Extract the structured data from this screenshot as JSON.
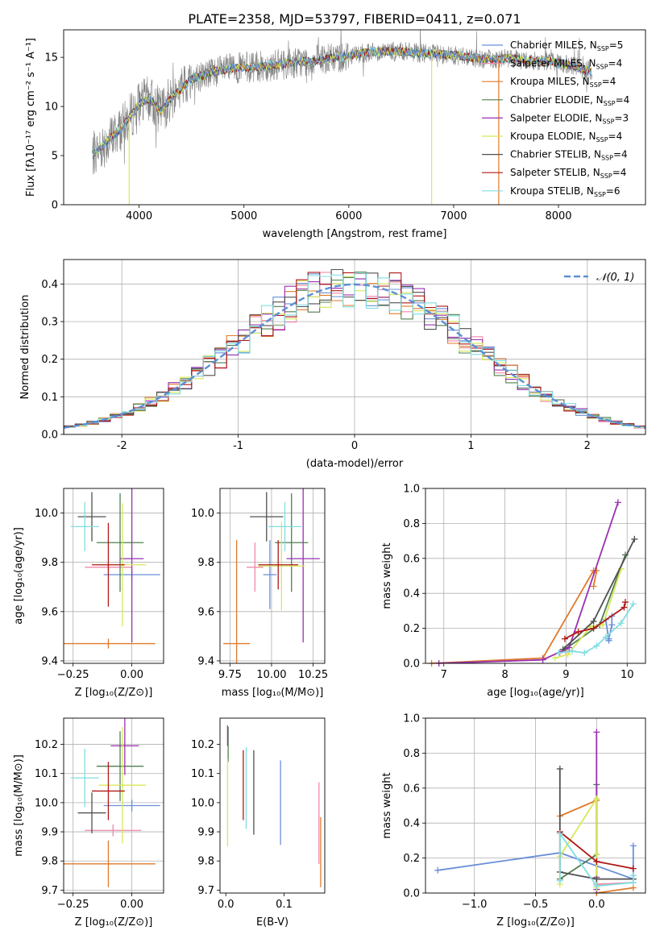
{
  "figure_title": "PLATE=2358, MJD=53797, FIBERID=0411, z=0.071",
  "colors": {
    "Chabrier MILES": "#6a8fd8",
    "Salpeter MILES": "#f08aa8",
    "Kroupa MILES": "#e07a2a",
    "Chabrier ELODIE": "#4f7f4f",
    "Salpeter ELODIE": "#9a30b0",
    "Kroupa ELODIE": "#d8e85a",
    "Chabrier STELIB": "#505050",
    "Salpeter STELIB": "#b01818",
    "Kroupa STELIB": "#80dde0",
    "normal_curve": "#5b8fd6"
  },
  "chart_data": [
    {
      "id": "spectrum",
      "type": "line",
      "xlabel": "wavelength [Angstrom, rest frame]",
      "ylabel": "Flux [fλ10⁻¹⁷ erg cm⁻² s⁻¹ A⁻¹]",
      "xlim": [
        3280,
        8830
      ],
      "ylim": [
        0,
        17.8
      ],
      "xticks": [
        4000,
        5000,
        6000,
        7000,
        8000
      ],
      "yticks": [
        0,
        5,
        10,
        15
      ],
      "grid": false,
      "legend_position": "right",
      "data_color": "#808080",
      "continuum": {
        "x": [
          3550,
          3700,
          3850,
          4000,
          4100,
          4200,
          4300,
          4400,
          4500,
          4700,
          4900,
          5100,
          5300,
          5500,
          5700,
          5900,
          6100,
          6300,
          6500,
          6700,
          6900,
          7100,
          7300,
          7500,
          7700,
          7900,
          8100,
          8300
        ],
        "y": [
          5.0,
          6.5,
          8.0,
          10.3,
          10.8,
          9.5,
          10.8,
          11.8,
          12.8,
          13.5,
          13.9,
          14.0,
          14.2,
          14.5,
          14.7,
          15.0,
          15.4,
          15.6,
          15.6,
          15.4,
          15.3,
          15.1,
          14.8,
          14.9,
          14.7,
          14.6,
          14.2,
          13.6
        ]
      },
      "series": [
        {
          "name": "Chabrier MILES, N$_{SSP}$=5",
          "label": "Chabrier MILES, N",
          "n": "=5"
        },
        {
          "name": "Salpeter MILES, N$_{SSP}$=4",
          "label": "Salpeter MILES, N",
          "n": "=4"
        },
        {
          "name": "Kroupa MILES, N$_{SSP}$=4",
          "label": "Kroupa MILES, N",
          "n": "=4"
        },
        {
          "name": "Chabrier ELODIE, N$_{SSP}$=4",
          "label": "Chabrier ELODIE, N",
          "n": "=4"
        },
        {
          "name": "Salpeter ELODIE, N$_{SSP}$=3",
          "label": "Salpeter ELODIE, N",
          "n": "=3"
        },
        {
          "name": "Kroupa ELODIE, N$_{SSP}$=4",
          "label": "Kroupa ELODIE, N",
          "n": "=4"
        },
        {
          "name": "Chabrier STELIB, N$_{SSP}$=4",
          "label": "Chabrier STELIB, N",
          "n": "=4"
        },
        {
          "name": "Salpeter STELIB, N$_{SSP}$=4",
          "label": "Salpeter STELIB, N",
          "n": "=4"
        },
        {
          "name": "Kroupa STELIB, N$_{SSP}$=6",
          "label": "Kroupa STELIB, N",
          "n": "=6"
        }
      ],
      "legend_subscript": "SSP",
      "spikes": [
        {
          "x": 3905,
          "color": "#d8e85a"
        },
        {
          "x": 6790,
          "color": "#d8e85a"
        },
        {
          "x": 7430,
          "color": "#e07a2a"
        }
      ]
    },
    {
      "id": "residuals",
      "type": "histogram",
      "xlabel": "(data-model)/error",
      "ylabel": "Normed distribution",
      "xlim": [
        -2.5,
        2.5
      ],
      "ylim": [
        0,
        0.465
      ],
      "xticks": [
        -2,
        -1,
        0,
        1,
        2
      ],
      "yticks": [
        0.0,
        0.1,
        0.2,
        0.3,
        0.4
      ],
      "grid": true,
      "bin_width": 0.1,
      "bin_start": -2.5,
      "legend": "𝒩(0, 1)",
      "legend_position": "top-right"
    },
    {
      "id": "age-vs-Z",
      "type": "errorbar",
      "xlabel": "Z [log₁₀(Z/Z⊙)]",
      "ylabel": "age  [log₁₀(age/yr)]",
      "xlim": [
        -0.29,
        0.135
      ],
      "ylim": [
        9.39,
        10.1
      ],
      "xticks": [
        -0.25,
        0.0
      ],
      "xtick_labels": [
        "−0.25",
        "0.00"
      ],
      "yticks": [
        9.4,
        9.6,
        9.8,
        10.0
      ],
      "grid": true,
      "points": [
        {
          "model": "Chabrier MILES",
          "x": 0.0,
          "xerr": 0.12,
          "y": 9.75,
          "yerr": 0.02
        },
        {
          "model": "Salpeter MILES",
          "x": -0.1,
          "xerr": 0.1,
          "y": 9.78,
          "yerr": 0.02
        },
        {
          "model": "Kroupa MILES",
          "x": -0.1,
          "xerr": 0.2,
          "y": 9.47,
          "yerr": 0.02
        },
        {
          "model": "Chabrier ELODIE",
          "x": -0.05,
          "xerr": 0.1,
          "y": 9.88,
          "yerr": 0.2
        },
        {
          "model": "Salpeter ELODIE",
          "x": 0.0,
          "xerr": 0.05,
          "y": 9.815,
          "yerr": 0.34
        },
        {
          "model": "Kroupa ELODIE",
          "x": -0.04,
          "xerr": 0.1,
          "y": 9.79,
          "yerr": 0.25
        },
        {
          "model": "Chabrier STELIB",
          "x": -0.17,
          "xerr": 0.06,
          "y": 9.985,
          "yerr": 0.1
        },
        {
          "model": "Salpeter STELIB",
          "x": -0.1,
          "xerr": 0.07,
          "y": 9.79,
          "yerr": 0.17
        },
        {
          "model": "Kroupa STELIB",
          "x": -0.2,
          "xerr": 0.06,
          "y": 9.945,
          "yerr": 0.1
        }
      ]
    },
    {
      "id": "age-vs-mass",
      "type": "errorbar",
      "xlabel": "mass [log₁₀(M/M⊙)]",
      "ylabel": "",
      "xlim": [
        9.69,
        10.32
      ],
      "ylim": [
        9.39,
        10.1
      ],
      "xticks": [
        9.75,
        10.0,
        10.25
      ],
      "xtick_labels": [
        "9.75",
        "10.00",
        "10.25"
      ],
      "yticks": [
        9.4,
        9.6,
        9.8,
        10.0
      ],
      "grid": true,
      "points": [
        {
          "model": "Chabrier MILES",
          "x": 9.99,
          "xerr": 0.04,
          "y": 9.75,
          "yerr": 0.14
        },
        {
          "model": "Salpeter MILES",
          "x": 9.9,
          "xerr": 0.05,
          "y": 9.78,
          "yerr": 0.1
        },
        {
          "model": "Kroupa MILES",
          "x": 9.79,
          "xerr": 0.08,
          "y": 9.47,
          "yerr": 0.42
        },
        {
          "model": "Chabrier ELODIE",
          "x": 10.12,
          "xerr": 0.1,
          "y": 9.88,
          "yerr": 0.2
        },
        {
          "model": "Salpeter ELODIE",
          "x": 10.19,
          "xerr": 0.1,
          "y": 9.815,
          "yerr": 0.34
        },
        {
          "model": "Kroupa ELODIE",
          "x": 10.06,
          "xerr": 0.14,
          "y": 9.785,
          "yerr": 0.18
        },
        {
          "model": "Chabrier STELIB",
          "x": 9.97,
          "xerr": 0.1,
          "y": 9.985,
          "yerr": 0.1
        },
        {
          "model": "Salpeter STELIB",
          "x": 10.04,
          "xerr": 0.12,
          "y": 9.79,
          "yerr": 0.1
        },
        {
          "model": "Kroupa STELIB",
          "x": 10.08,
          "xerr": 0.1,
          "y": 9.945,
          "yerr": 0.1
        }
      ]
    },
    {
      "id": "weight-vs-age",
      "type": "line",
      "xlabel": "age  [log₁₀(age/yr)]",
      "ylabel": "mass weight",
      "xlim": [
        6.7,
        10.3
      ],
      "ylim": [
        0,
        1.0
      ],
      "xticks": [
        7,
        8,
        9,
        10
      ],
      "yticks": [
        0.0,
        0.2,
        0.4,
        0.6,
        0.8,
        1.0
      ],
      "grid": true,
      "series": [
        {
          "model": "Chabrier MILES",
          "x": [
            9.65,
            9.7,
            9.7,
            9.75,
            9.75
          ],
          "y": [
            0.25,
            0.13,
            0.14,
            0.22,
            0.27
          ]
        },
        {
          "model": "Salpeter MILES",
          "x": [
            8.9,
            9.0
          ],
          "y": [
            0.06,
            0.07
          ]
        },
        {
          "model": "Kroupa MILES",
          "x": [
            6.8,
            8.62,
            9.45,
            9.5,
            9.45
          ],
          "y": [
            0.0,
            0.03,
            0.53,
            0.53,
            0.44
          ]
        },
        {
          "model": "Chabrier ELODIE",
          "x": [
            8.98,
            9.55,
            9.97
          ],
          "y": [
            0.08,
            0.22,
            0.62
          ]
        },
        {
          "model": "Salpeter ELODIE",
          "x": [
            6.92,
            8.62,
            9.05,
            9.85
          ],
          "y": [
            0.0,
            0.02,
            0.09,
            0.92
          ]
        },
        {
          "model": "Kroupa ELODIE",
          "x": [
            8.82,
            9.03,
            9.4,
            9.6,
            9.9
          ],
          "y": [
            0.03,
            0.05,
            0.21,
            0.22,
            0.54
          ]
        },
        {
          "model": "Chabrier STELIB",
          "x": [
            8.95,
            9.45,
            10.12
          ],
          "y": [
            0.08,
            0.24,
            0.71
          ]
        },
        {
          "model": "Salpeter STELIB",
          "x": [
            8.98,
            9.2,
            9.45,
            9.95,
            9.97
          ],
          "y": [
            0.14,
            0.18,
            0.2,
            0.32,
            0.35
          ]
        },
        {
          "model": "Kroupa STELIB",
          "x": [
            8.88,
            9.1,
            9.3,
            9.5,
            9.65,
            9.9,
            10.1
          ],
          "y": [
            0.06,
            0.07,
            0.06,
            0.1,
            0.15,
            0.23,
            0.34
          ]
        }
      ]
    },
    {
      "id": "mass-vs-Z",
      "type": "errorbar",
      "xlabel": "Z [log₁₀(Z/Z⊙)]",
      "ylabel": "mass [log₁₀(M/M⊙)]",
      "xlim": [
        -0.29,
        0.135
      ],
      "ylim": [
        9.69,
        10.29
      ],
      "xticks": [
        -0.25,
        0.0
      ],
      "xtick_labels": [
        "−0.25",
        "0.00"
      ],
      "yticks": [
        9.7,
        9.8,
        9.9,
        10.0,
        10.1,
        10.2
      ],
      "grid": true,
      "points": [
        {
          "model": "Chabrier MILES",
          "x": 0.0,
          "xerr": 0.12,
          "y": 9.99,
          "yerr": 0.02
        },
        {
          "model": "Salpeter MILES",
          "x": -0.08,
          "xerr": 0.12,
          "y": 9.905,
          "yerr": 0.02
        },
        {
          "model": "Kroupa MILES",
          "x": -0.1,
          "xerr": 0.2,
          "y": 9.79,
          "yerr": 0.08
        },
        {
          "model": "Chabrier ELODIE",
          "x": -0.05,
          "xerr": 0.1,
          "y": 10.125,
          "yerr": 0.12
        },
        {
          "model": "Salpeter ELODIE",
          "x": -0.03,
          "xerr": 0.06,
          "y": 10.195,
          "yerr": 0.1
        },
        {
          "model": "Kroupa ELODIE",
          "x": -0.04,
          "xerr": 0.1,
          "y": 10.06,
          "yerr": 0.2
        },
        {
          "model": "Chabrier STELIB",
          "x": -0.17,
          "xerr": 0.06,
          "y": 9.965,
          "yerr": 0.07
        },
        {
          "model": "Salpeter STELIB",
          "x": -0.1,
          "xerr": 0.07,
          "y": 10.04,
          "yerr": 0.1
        },
        {
          "model": "Kroupa STELIB",
          "x": -0.2,
          "xerr": 0.06,
          "y": 10.085,
          "yerr": 0.1
        }
      ]
    },
    {
      "id": "mass-vs-ebv",
      "type": "errorbar",
      "xlabel": "E(B-V)",
      "ylabel": "",
      "xlim": [
        -0.01,
        0.17
      ],
      "ylim": [
        9.69,
        10.29
      ],
      "xticks": [
        0.0,
        0.1
      ],
      "xtick_labels": [
        "0.0",
        "0.1"
      ],
      "yticks": [
        9.7,
        9.8,
        9.9,
        10.0,
        10.1,
        10.2
      ],
      "grid": false,
      "points": [
        {
          "model": "Chabrier MILES",
          "x": 0.094,
          "xerr": 0,
          "y": 10.0,
          "yerr": 0.145
        },
        {
          "model": "Salpeter MILES",
          "x": 0.16,
          "xerr": 0,
          "y": 9.93,
          "yerr": 0.14
        },
        {
          "model": "Kroupa MILES",
          "x": 0.163,
          "xerr": 0,
          "y": 9.83,
          "yerr": 0.12
        },
        {
          "model": "Chabrier ELODIE",
          "x": 0.004,
          "xerr": 0,
          "y": 10.2,
          "yerr": 0.06
        },
        {
          "model": "Salpeter ELODIE",
          "x": 0.003,
          "xerr": 0,
          "y": 10.23,
          "yerr": 0.035
        },
        {
          "model": "Kroupa ELODIE",
          "x": 0.003,
          "xerr": 0,
          "y": 10.0,
          "yerr": 0.15
        },
        {
          "model": "Chabrier STELIB",
          "x": 0.048,
          "xerr": 0,
          "y": 10.035,
          "yerr": 0.145
        },
        {
          "model": "Salpeter STELIB",
          "x": 0.03,
          "xerr": 0,
          "y": 10.06,
          "yerr": 0.12
        },
        {
          "model": "Kroupa STELIB",
          "x": 0.035,
          "xerr": 0,
          "y": 10.05,
          "yerr": 0.14
        }
      ]
    },
    {
      "id": "weight-vs-Z",
      "type": "line",
      "xlabel": "Z [log₁₀(Z/Z⊙)]",
      "ylabel": "mass weight",
      "xlim": [
        -1.4,
        0.4
      ],
      "ylim": [
        0,
        1.0
      ],
      "xticks": [
        -1.0,
        -0.5,
        0.0
      ],
      "xtick_labels": [
        "−1.0",
        "−0.5",
        "0.0"
      ],
      "yticks": [
        0.0,
        0.2,
        0.4,
        0.6,
        0.8,
        1.0
      ],
      "grid": true,
      "series": [
        {
          "model": "Chabrier MILES",
          "x": [
            -1.3,
            -0.3,
            0.3,
            0.3
          ],
          "y": [
            0.13,
            0.23,
            0.08,
            0.27
          ]
        },
        {
          "model": "Salpeter MILES",
          "x": [
            0.0,
            0.3
          ],
          "y": [
            0.05,
            0.06
          ]
        },
        {
          "model": "Kroupa MILES",
          "x": [
            -0.3,
            0.0,
            0.0,
            0.3
          ],
          "y": [
            0.44,
            0.53,
            0.0,
            0.03
          ]
        },
        {
          "model": "Chabrier ELODIE",
          "x": [
            -0.3,
            0.0,
            0.0
          ],
          "y": [
            0.08,
            0.22,
            0.62
          ]
        },
        {
          "model": "Salpeter ELODIE",
          "x": [
            0.0,
            0.0,
            0.0
          ],
          "y": [
            0.09,
            0.92,
            0.02
          ]
        },
        {
          "model": "Kroupa ELODIE",
          "x": [
            -0.3,
            -0.3,
            0.0,
            0.0,
            0.0
          ],
          "y": [
            0.05,
            0.21,
            0.54,
            0.22,
            0.03
          ]
        },
        {
          "model": "Chabrier STELIB",
          "x": [
            -0.3,
            -0.3,
            0.0,
            0.3
          ],
          "y": [
            0.71,
            0.12,
            0.08,
            0.08
          ]
        },
        {
          "model": "Salpeter STELIB",
          "x": [
            -0.3,
            0.0,
            0.3
          ],
          "y": [
            0.35,
            0.18,
            0.14
          ]
        },
        {
          "model": "Kroupa STELIB",
          "x": [
            -0.3,
            -0.3,
            0.0,
            0.3,
            0.3
          ],
          "y": [
            0.07,
            0.34,
            0.04,
            0.06,
            0.1
          ]
        }
      ]
    }
  ]
}
